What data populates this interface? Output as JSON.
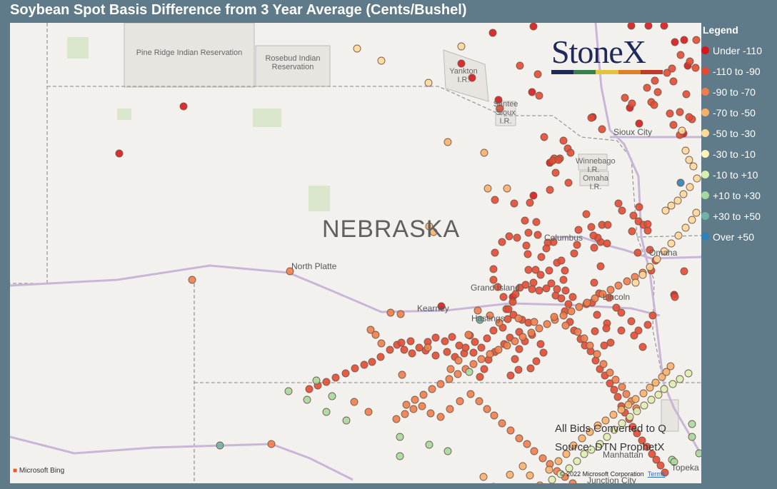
{
  "title": "Soybean Spot Basis Difference from 3 Year Average (Cents/Bushel)",
  "map": {
    "state_label": "NEBRASKA",
    "cities": [
      {
        "name": "North Platte"
      },
      {
        "name": "Grand Island"
      },
      {
        "name": "Kearney"
      },
      {
        "name": "Hastings"
      },
      {
        "name": "Columbus"
      },
      {
        "name": "Omaha"
      },
      {
        "name": "Lincoln"
      },
      {
        "name": "Sioux City"
      },
      {
        "name": "Topeka"
      },
      {
        "name": "Manhattan"
      },
      {
        "name": "Junction City"
      }
    ],
    "reservations": [
      {
        "name": "Pine Ridge Indian Reservation"
      },
      {
        "name": "Rosebud Indian Reservation"
      },
      {
        "name": "Yankton I.R."
      },
      {
        "name": "Santee Sioux I.R."
      },
      {
        "name": "Winnebago I.R."
      },
      {
        "name": "Omaha I.R."
      }
    ],
    "notes": [
      "All Bids Converted to Q",
      "Source: DTN ProphetX"
    ],
    "attribution": "Microsoft Bing",
    "copyright": "© 2022 Microsoft Corporation",
    "terms": "Terms"
  },
  "logo": {
    "text": "StoneX",
    "bar_colors": [
      "#1e2a5a",
      "#3b7f4a",
      "#e8c23a",
      "#d9822b",
      "#c0392b"
    ]
  },
  "legend": {
    "title": "Legend",
    "items": [
      {
        "label": "Under -110",
        "color": "#d7191c"
      },
      {
        "label": "-110 to -90",
        "color": "#e34a33"
      },
      {
        "label": "-90 to -70",
        "color": "#f07d4a"
      },
      {
        "label": "-70 to -50",
        "color": "#f6b26b"
      },
      {
        "label": "-50 to -30",
        "color": "#fdd99b"
      },
      {
        "label": "-30 to -10",
        "color": "#fef3b8"
      },
      {
        "label": "-10 to +10",
        "color": "#d9efb0"
      },
      {
        "label": "+10 to +30",
        "color": "#a6d9a0"
      },
      {
        "label": "+30 to +50",
        "color": "#6fb3a6"
      },
      {
        "label": "Over +50",
        "color": "#2b83ba"
      }
    ]
  },
  "points": [
    [
      243,
      117,
      0
    ],
    [
      153,
      183,
      0
    ],
    [
      604,
      397,
      0
    ],
    [
      704,
      384,
      0
    ],
    [
      733,
      242,
      0
    ],
    [
      731,
      97,
      0
    ],
    [
      733,
      5,
      0
    ],
    [
      868,
      119,
      0
    ],
    [
      870,
      4,
      0
    ],
    [
      894,
      4,
      0
    ],
    [
      916,
      4,
      0
    ],
    [
      931,
      27,
      0
    ],
    [
      944,
      24,
      0
    ],
    [
      949,
      60,
      0
    ],
    [
      881,
      141,
      0
    ],
    [
      943,
      155,
      0
    ],
    [
      930,
      381,
      0
    ],
    [
      816,
      132,
      0
    ],
    [
      756,
      196,
      0
    ],
    [
      684,
      108,
      0
    ],
    [
      647,
      77,
      0
    ],
    [
      632,
      57,
      0
    ],
    [
      676,
      14,
      0
    ],
    [
      714,
      60,
      1
    ],
    [
      741,
      102,
      1
    ],
    [
      739,
      72,
      1
    ],
    [
      686,
      120,
      1
    ],
    [
      748,
      160,
      1
    ],
    [
      829,
      149,
      1
    ],
    [
      814,
      133,
      1
    ],
    [
      871,
      113,
      1
    ],
    [
      861,
      105,
      1
    ],
    [
      892,
      91,
      1
    ],
    [
      907,
      97,
      1
    ],
    [
      920,
      70,
      1
    ],
    [
      927,
      64,
      1
    ],
    [
      903,
      81,
      1
    ],
    [
      929,
      82,
      1
    ],
    [
      939,
      45,
      1
    ],
    [
      961,
      24,
      1
    ],
    [
      952,
      54,
      1
    ],
    [
      898,
      111,
      1
    ],
    [
      902,
      115,
      1
    ],
    [
      924,
      127,
      1
    ],
    [
      947,
      100,
      1
    ],
    [
      955,
      135,
      1
    ],
    [
      938,
      125,
      1
    ],
    [
      929,
      143,
      1
    ],
    [
      951,
      132,
      1
    ],
    [
      960,
      63,
      1
    ],
    [
      938,
      157,
      1
    ],
    [
      770,
      190,
      1
    ],
    [
      775,
      165,
      1
    ],
    [
      781,
      176,
      1
    ],
    [
      762,
      190,
      1
    ],
    [
      785,
      182,
      1
    ],
    [
      728,
      252,
      1
    ],
    [
      706,
      253,
      1
    ],
    [
      721,
      277,
      1
    ],
    [
      782,
      224,
      1
    ],
    [
      760,
      193,
      1
    ],
    [
      768,
      192,
      1
    ],
    [
      764,
      210,
      1
    ],
    [
      679,
      248,
      1
    ],
    [
      756,
      234,
      1
    ],
    [
      852,
      253,
      1
    ],
    [
      857,
      263,
      1
    ],
    [
      873,
      270,
      1
    ],
    [
      880,
      278,
      1
    ],
    [
      881,
      258,
      1
    ],
    [
      887,
      283,
      1
    ],
    [
      893,
      291,
      1
    ],
    [
      893,
      282,
      1
    ],
    [
      871,
      292,
      1
    ],
    [
      896,
      318,
      1
    ],
    [
      904,
      333,
      1
    ],
    [
      879,
      322,
      1
    ],
    [
      898,
      347,
      1
    ],
    [
      944,
      348,
      1
    ],
    [
      931,
      384,
      1
    ],
    [
      893,
      423,
      1
    ],
    [
      870,
      418,
      1
    ],
    [
      900,
      410,
      1
    ],
    [
      880,
      431,
      1
    ],
    [
      886,
      454,
      1
    ],
    [
      874,
      438,
      1
    ],
    [
      856,
      431,
      1
    ],
    [
      841,
      448,
      1
    ],
    [
      832,
      452,
      1
    ],
    [
      836,
      421,
      1
    ],
    [
      849,
      399,
      1
    ],
    [
      856,
      406,
      1
    ],
    [
      835,
      428,
      1
    ],
    [
      819,
      432,
      1
    ],
    [
      822,
      409,
      1
    ],
    [
      839,
      385,
      1
    ],
    [
      825,
      379,
      1
    ],
    [
      815,
      392,
      1
    ],
    [
      807,
      394,
      1
    ],
    [
      818,
      364,
      1
    ],
    [
      827,
      341,
      1
    ],
    [
      836,
      309,
      1
    ],
    [
      827,
      307,
      1
    ],
    [
      818,
      315,
      1
    ],
    [
      823,
      301,
      1
    ],
    [
      829,
      283,
      1
    ],
    [
      837,
      283,
      1
    ],
    [
      817,
      298,
      1
    ],
    [
      814,
      286,
      1
    ],
    [
      807,
      268,
      1
    ],
    [
      796,
      290,
      1
    ],
    [
      794,
      311,
      1
    ],
    [
      790,
      323,
      1
    ],
    [
      777,
      347,
      1
    ],
    [
      766,
      336,
      1
    ],
    [
      755,
      347,
      1
    ],
    [
      764,
      382,
      1
    ],
    [
      788,
      384,
      1
    ],
    [
      782,
      394,
      1
    ],
    [
      778,
      375,
      1
    ],
    [
      775,
      360,
      1
    ],
    [
      772,
      333,
      1
    ],
    [
      761,
      307,
      1
    ],
    [
      753,
      308,
      1
    ],
    [
      751,
      316,
      1
    ],
    [
      744,
      328,
      1
    ],
    [
      736,
      346,
      1
    ],
    [
      743,
      353,
      1
    ],
    [
      733,
      364,
      1
    ],
    [
      726,
      346,
      1
    ],
    [
      725,
      324,
      1
    ],
    [
      723,
      312,
      1
    ],
    [
      739,
      297,
      1
    ],
    [
      737,
      279,
      1
    ],
    [
      726,
      294,
      1
    ],
    [
      710,
      301,
      1
    ],
    [
      699,
      299,
      1
    ],
    [
      689,
      307,
      1
    ],
    [
      679,
      322,
      1
    ],
    [
      677,
      345,
      1
    ],
    [
      677,
      360,
      1
    ],
    [
      683,
      370,
      1
    ],
    [
      691,
      384,
      1
    ],
    [
      695,
      401,
      1
    ],
    [
      705,
      409,
      1
    ],
    [
      717,
      416,
      1
    ],
    [
      726,
      420,
      1
    ],
    [
      731,
      437,
      1
    ],
    [
      743,
      450,
      1
    ],
    [
      747,
      462,
      1
    ],
    [
      737,
      474,
      1
    ],
    [
      729,
      484,
      1
    ],
    [
      712,
      486,
      1
    ],
    [
      701,
      494,
      1
    ],
    [
      707,
      471,
      1
    ],
    [
      713,
      457,
      1
    ],
    [
      721,
      446,
      1
    ],
    [
      713,
      433,
      1
    ],
    [
      700,
      441,
      1
    ],
    [
      692,
      450,
      1
    ],
    [
      679,
      461,
      1
    ],
    [
      670,
      472,
      1
    ],
    [
      664,
      485,
      1
    ],
    [
      658,
      496,
      1
    ],
    [
      649,
      462,
      1
    ],
    [
      636,
      463,
      1
    ],
    [
      623,
      468,
      1
    ],
    [
      612,
      461,
      1
    ],
    [
      596,
      466,
      1
    ],
    [
      582,
      459,
      1
    ],
    [
      563,
      463,
      1
    ],
    [
      552,
      458,
      1
    ],
    [
      542,
      451,
      1
    ],
    [
      532,
      458,
      1
    ],
    [
      519,
      468,
      1
    ],
    [
      507,
      475,
      1
    ],
    [
      496,
      479,
      1
    ],
    [
      483,
      484,
      1
    ],
    [
      470,
      491,
      1
    ],
    [
      456,
      497,
      1
    ],
    [
      443,
      503,
      1
    ],
    [
      431,
      508,
      1
    ],
    [
      419,
      513,
      1
    ],
    [
      548,
      448,
      1
    ],
    [
      561,
      446,
      1
    ],
    [
      573,
      455,
      1
    ],
    [
      585,
      447,
      1
    ],
    [
      596,
      441,
      1
    ],
    [
      609,
      446,
      1
    ],
    [
      619,
      440,
      1
    ],
    [
      629,
      452,
      1
    ],
    [
      638,
      455,
      1
    ],
    [
      644,
      438,
      1
    ],
    [
      651,
      447,
      1
    ],
    [
      660,
      455,
      1
    ],
    [
      668,
      442,
      1
    ],
    [
      677,
      431,
      1
    ],
    [
      690,
      427,
      1
    ],
    [
      697,
      415,
      1
    ],
    [
      698,
      401,
      1
    ],
    [
      704,
      391,
      1
    ],
    [
      708,
      380,
      1
    ],
    [
      714,
      371,
      1
    ],
    [
      722,
      367,
      1
    ],
    [
      731,
      373,
      1
    ],
    [
      741,
      375,
      1
    ],
    [
      751,
      372,
      1
    ],
    [
      758,
      365,
      1
    ],
    [
      766,
      373,
      1
    ],
    [
      772,
      386,
      1
    ],
    [
      777,
      404,
      1
    ],
    [
      784,
      419,
      1
    ],
    [
      790,
      431,
      1
    ],
    [
      799,
      443,
      1
    ],
    [
      805,
      452,
      1
    ],
    [
      813,
      460,
      1
    ],
    [
      820,
      473,
      1
    ],
    [
      826,
      485,
      1
    ],
    [
      833,
      494,
      1
    ],
    [
      840,
      505,
      1
    ],
    [
      846,
      514,
      1
    ],
    [
      851,
      524,
      1
    ],
    [
      856,
      537,
      1
    ],
    [
      861,
      546,
      1
    ],
    [
      867,
      555,
      1
    ],
    [
      872,
      566,
      1
    ],
    [
      878,
      575,
      1
    ],
    [
      885,
      585,
      1
    ],
    [
      892,
      594,
      1
    ],
    [
      899,
      604,
      1
    ],
    [
      905,
      612,
      1
    ],
    [
      911,
      620,
      1
    ],
    [
      917,
      630,
      1
    ],
    [
      555,
      535,
      2
    ],
    [
      567,
      528,
      2
    ],
    [
      579,
      521,
      2
    ],
    [
      591,
      513,
      2
    ],
    [
      603,
      506,
      2
    ],
    [
      615,
      499,
      2
    ],
    [
      627,
      492,
      2
    ],
    [
      638,
      485,
      2
    ],
    [
      649,
      478,
      2
    ],
    [
      660,
      471,
      2
    ],
    [
      672,
      464,
      2
    ],
    [
      684,
      458,
      2
    ],
    [
      696,
      452,
      2
    ],
    [
      707,
      446,
      2
    ],
    [
      718,
      440,
      2
    ],
    [
      730,
      434,
      2
    ],
    [
      741,
      428,
      2
    ],
    [
      752,
      422,
      2
    ],
    [
      763,
      416,
      2
    ],
    [
      775,
      410,
      2
    ],
    [
      786,
      404,
      2
    ],
    [
      797,
      398,
      2
    ],
    [
      808,
      392,
      2
    ],
    [
      819,
      386,
      2
    ],
    [
      830,
      380,
      2
    ],
    [
      841,
      374,
      2
    ],
    [
      852,
      368,
      2
    ],
    [
      864,
      362,
      2
    ],
    [
      875,
      356,
      2
    ],
    [
      886,
      350,
      2
    ],
    [
      255,
      360,
      2
    ],
    [
      392,
      348,
      2
    ],
    [
      533,
      406,
      2
    ],
    [
      547,
      408,
      2
    ],
    [
      505,
      430,
      2
    ],
    [
      512,
      437,
      2
    ],
    [
      520,
      449,
      2
    ],
    [
      549,
      493,
      2
    ],
    [
      585,
      455,
      2
    ],
    [
      617,
      485,
      2
    ],
    [
      628,
      473,
      2
    ],
    [
      642,
      437,
      2
    ],
    [
      655,
      403,
      2
    ],
    [
      672,
      410,
      2
    ],
    [
      685,
      420,
      2
    ],
    [
      712,
      414,
      2
    ],
    [
      734,
      419,
      2
    ],
    [
      762,
      412,
      2
    ],
    [
      778,
      424,
      2
    ],
    [
      795,
      433,
      2
    ],
    [
      804,
      442,
      2
    ],
    [
      812,
      452,
      2
    ],
    [
      822,
      464,
      2
    ],
    [
      831,
      478,
      2
    ],
    [
      840,
      490,
      2
    ],
    [
      848,
      500,
      2
    ],
    [
      857,
      510,
      2
    ],
    [
      863,
      520,
      2
    ],
    [
      870,
      530,
      2
    ],
    [
      877,
      540,
      2
    ],
    [
      482,
      531,
      2
    ],
    [
      502,
      545,
      2
    ],
    [
      541,
      555,
      2
    ],
    [
      553,
      548,
      2
    ],
    [
      565,
      541,
      2
    ],
    [
      577,
      537,
      2
    ],
    [
      589,
      547,
      2
    ],
    [
      603,
      552,
      2
    ],
    [
      616,
      541,
      2
    ],
    [
      630,
      530,
      2
    ],
    [
      645,
      520,
      2
    ],
    [
      657,
      530,
      2
    ],
    [
      668,
      541,
      2
    ],
    [
      678,
      550,
      2
    ],
    [
      689,
      561,
      2
    ],
    [
      701,
      571,
      2
    ],
    [
      713,
      582,
      2
    ],
    [
      724,
      590,
      2
    ],
    [
      734,
      600,
      2
    ],
    [
      746,
      610,
      2
    ],
    [
      756,
      618,
      2
    ],
    [
      766,
      628,
      2
    ],
    [
      777,
      636,
      2
    ],
    [
      788,
      645,
      2
    ],
    [
      799,
      652,
      2
    ],
    [
      811,
      660,
      2
    ],
    [
      663,
      636,
      3
    ],
    [
      677,
      650,
      3
    ],
    [
      700,
      633,
      3
    ],
    [
      718,
      621,
      3
    ],
    [
      728,
      634,
      3
    ],
    [
      742,
      648,
      3
    ],
    [
      755,
      626,
      3
    ],
    [
      768,
      614,
      3
    ],
    [
      779,
      604,
      3
    ],
    [
      789,
      592,
      3
    ],
    [
      801,
      582,
      3
    ],
    [
      812,
      573,
      3
    ],
    [
      823,
      564,
      3
    ],
    [
      834,
      557,
      3
    ],
    [
      845,
      549,
      3
    ],
    [
      856,
      542,
      3
    ],
    [
      866,
      535,
      3
    ],
    [
      876,
      527,
      3
    ],
    [
      887,
      519,
      3
    ],
    [
      896,
      511,
      3
    ],
    [
      904,
      504,
      3
    ],
    [
      913,
      496,
      3
    ],
    [
      919,
      489,
      3
    ],
    [
      925,
      481,
      3
    ],
    [
      429,
      501,
      7
    ],
    [
      390,
      516,
      7
    ],
    [
      451,
      523,
      7
    ],
    [
      416,
      528,
      7
    ],
    [
      443,
      545,
      7
    ],
    [
      471,
      557,
      7
    ],
    [
      546,
      580,
      7
    ],
    [
      546,
      607,
      7
    ],
    [
      587,
      591,
      7
    ],
    [
      613,
      600,
      7
    ],
    [
      643,
      489,
      7
    ],
    [
      658,
      416,
      8
    ],
    [
      294,
      592,
      8
    ],
    [
      939,
      224,
      9
    ],
    [
      366,
      590,
      2
    ],
    [
      927,
      612,
      7
    ],
    [
      955,
      562,
      7
    ],
    [
      930,
      615,
      7
    ],
    [
      955,
      580,
      7
    ],
    [
      965,
      603,
      7
    ],
    [
      749,
      654,
      6
    ],
    [
      759,
      640,
      6
    ],
    [
      771,
      632,
      6
    ],
    [
      783,
      624,
      6
    ],
    [
      794,
      614,
      6
    ],
    [
      804,
      604,
      6
    ],
    [
      814,
      598,
      6
    ],
    [
      826,
      590,
      6
    ],
    [
      836,
      580,
      6
    ],
    [
      846,
      570,
      6
    ],
    [
      857,
      561,
      6
    ],
    [
      868,
      552,
      6
    ],
    [
      878,
      544,
      6
    ],
    [
      888,
      536,
      6
    ],
    [
      898,
      528,
      6
    ],
    [
      908,
      521,
      6
    ],
    [
      916,
      513,
      6
    ],
    [
      928,
      506,
      6
    ],
    [
      938,
      499,
      6
    ],
    [
      950,
      491,
      6
    ],
    [
      941,
      151,
      4
    ],
    [
      946,
      179,
      4
    ],
    [
      951,
      192,
      4
    ],
    [
      957,
      201,
      4
    ],
    [
      962,
      218,
      4
    ],
    [
      952,
      230,
      4
    ],
    [
      943,
      240,
      4
    ],
    [
      935,
      249,
      4
    ],
    [
      926,
      256,
      4
    ],
    [
      918,
      263,
      4
    ],
    [
      961,
      266,
      4
    ],
    [
      955,
      276,
      4
    ],
    [
      946,
      287,
      4
    ],
    [
      936,
      298,
      4
    ],
    [
      926,
      309,
      4
    ],
    [
      916,
      320,
      4
    ],
    [
      906,
      331,
      4
    ],
    [
      896,
      342,
      4
    ],
    [
      886,
      353,
      4
    ],
    [
      876,
      364,
      4
    ],
    [
      587,
      285,
      3
    ],
    [
      593,
      293,
      3
    ],
    [
      632,
      33,
      4
    ],
    [
      486,
      36,
      4
    ],
    [
      520,
      53,
      4
    ],
    [
      586,
      84,
      4
    ],
    [
      613,
      167,
      3
    ],
    [
      664,
      182,
      3
    ],
    [
      669,
      232,
      3
    ],
    [
      696,
      232,
      3
    ]
  ]
}
